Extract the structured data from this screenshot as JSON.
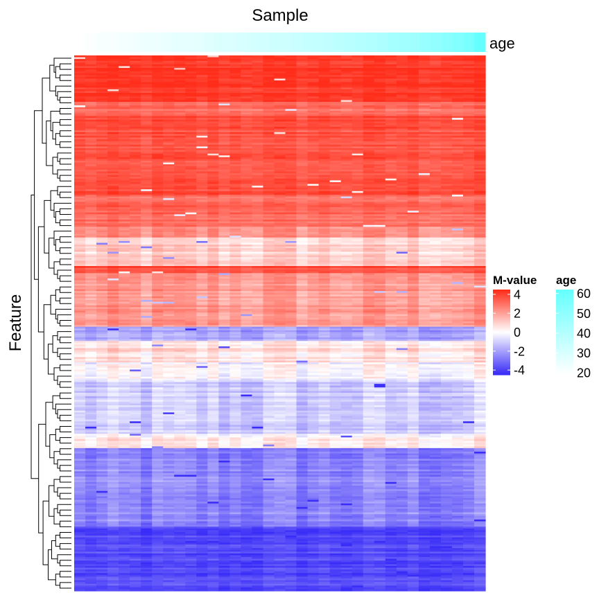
{
  "chart_data": {
    "type": "heatmap",
    "title": "Sample",
    "ylabel": "Feature",
    "annotation_label": "age",
    "n_columns": 37,
    "row_dendrogram": true,
    "age_values": [
      20,
      21,
      21,
      22,
      23,
      24,
      24,
      25,
      26,
      26,
      27,
      28,
      29,
      29,
      30,
      31,
      32,
      33,
      33,
      34,
      35,
      36,
      37,
      38,
      39,
      40,
      41,
      42,
      44,
      45,
      46,
      48,
      50,
      52,
      54,
      57,
      62
    ],
    "row_bands": [
      {
        "rows": 26,
        "mean": 4.3
      },
      {
        "rows": 8,
        "mean": 3.0
      },
      {
        "rows": 44,
        "mean": 3.7
      },
      {
        "rows": 18,
        "mean": 3.2
      },
      {
        "rows": 6,
        "mean": 2.2
      },
      {
        "rows": 16,
        "mean": 0.9
      },
      {
        "rows": 4,
        "mean": 3.8
      },
      {
        "rows": 30,
        "mean": 2.1
      },
      {
        "rows": 8,
        "mean": -2.0
      },
      {
        "rows": 12,
        "mean": 0.6
      },
      {
        "rows": 10,
        "mean": -0.2
      },
      {
        "rows": 30,
        "mean": -1.2
      },
      {
        "rows": 8,
        "mean": 0.3
      },
      {
        "rows": 44,
        "mean": -2.6
      },
      {
        "rows": 36,
        "mean": -3.9
      }
    ],
    "legends": [
      {
        "title": "M-value",
        "range": [
          -4.5,
          4.5
        ],
        "ticks": [
          4,
          2,
          0,
          -2,
          -4
        ],
        "colors": [
          "#ff2d1a",
          "#ffffff",
          "#3a2df7"
        ]
      },
      {
        "title": "age",
        "range": [
          19,
          62
        ],
        "ticks": [
          60,
          50,
          40,
          30,
          20
        ],
        "colors": [
          "#ffffff",
          "#66ffff"
        ]
      }
    ]
  }
}
